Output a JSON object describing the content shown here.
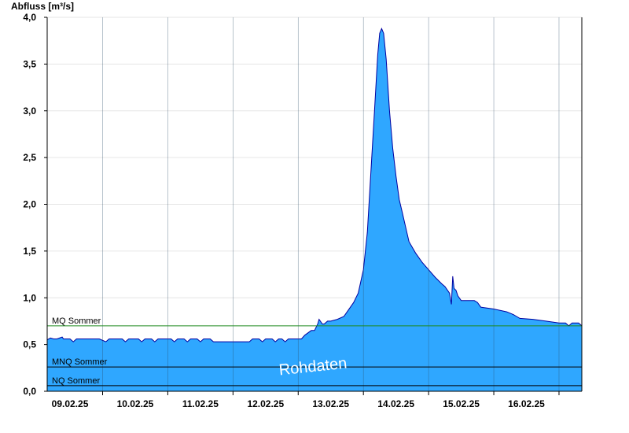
{
  "chart_data": {
    "type": "area",
    "ylabel": "Abfluss [m³/s]",
    "ylim": [
      0,
      4.0
    ],
    "yticks": [
      "0,0",
      "0,5",
      "1,0",
      "1,5",
      "2,0",
      "2,5",
      "3,0",
      "3,5",
      "4,0"
    ],
    "ytick_values": [
      0,
      0.5,
      1.0,
      1.5,
      2.0,
      2.5,
      3.0,
      3.5,
      4.0
    ],
    "xlim": [
      -0.35,
      7.85
    ],
    "xticks": [
      "09.02.25",
      "10.02.25",
      "11.02.25",
      "12.02.25",
      "13.02.25",
      "14.02.25",
      "15.02.25",
      "16.02.25"
    ],
    "grid": true,
    "watermark": "Rohdaten",
    "fill_color": "#2fa7ff",
    "line_color": "#0000a0",
    "reference_lines": [
      {
        "label": "MQ Sommer",
        "value": 0.7,
        "color": "#1e8a1e"
      },
      {
        "label": "MNQ Sommer",
        "value": 0.26,
        "color": "#000000"
      },
      {
        "label": "NQ Sommer",
        "value": 0.06,
        "color": "#000000"
      }
    ],
    "series": [
      {
        "values": [
          [
            -0.35,
            0.55
          ],
          [
            -0.3,
            0.57
          ],
          [
            -0.25,
            0.56
          ],
          [
            -0.2,
            0.56
          ],
          [
            -0.12,
            0.58
          ],
          [
            -0.1,
            0.56
          ],
          [
            0.0,
            0.56
          ],
          [
            0.05,
            0.53
          ],
          [
            0.1,
            0.56
          ],
          [
            0.3,
            0.56
          ],
          [
            0.45,
            0.56
          ],
          [
            0.55,
            0.53
          ],
          [
            0.6,
            0.56
          ],
          [
            0.8,
            0.56
          ],
          [
            0.85,
            0.53
          ],
          [
            0.9,
            0.56
          ],
          [
            1.05,
            0.56
          ],
          [
            1.1,
            0.53
          ],
          [
            1.15,
            0.56
          ],
          [
            1.25,
            0.56
          ],
          [
            1.3,
            0.53
          ],
          [
            1.35,
            0.56
          ],
          [
            1.55,
            0.56
          ],
          [
            1.6,
            0.53
          ],
          [
            1.65,
            0.56
          ],
          [
            1.75,
            0.56
          ],
          [
            1.8,
            0.53
          ],
          [
            1.85,
            0.56
          ],
          [
            1.95,
            0.56
          ],
          [
            2.0,
            0.53
          ],
          [
            2.05,
            0.56
          ],
          [
            2.15,
            0.56
          ],
          [
            2.2,
            0.53
          ],
          [
            2.4,
            0.53
          ],
          [
            2.5,
            0.53
          ],
          [
            2.75,
            0.53
          ],
          [
            2.8,
            0.56
          ],
          [
            2.9,
            0.56
          ],
          [
            2.95,
            0.53
          ],
          [
            3.0,
            0.56
          ],
          [
            3.1,
            0.56
          ],
          [
            3.15,
            0.53
          ],
          [
            3.2,
            0.56
          ],
          [
            3.25,
            0.56
          ],
          [
            3.3,
            0.53
          ],
          [
            3.35,
            0.56
          ],
          [
            3.55,
            0.56
          ],
          [
            3.6,
            0.6
          ],
          [
            3.7,
            0.65
          ],
          [
            3.75,
            0.65
          ],
          [
            3.8,
            0.72
          ],
          [
            3.82,
            0.77
          ],
          [
            3.87,
            0.72
          ],
          [
            3.9,
            0.72
          ],
          [
            3.95,
            0.75
          ],
          [
            4.0,
            0.75
          ],
          [
            4.1,
            0.77
          ],
          [
            4.2,
            0.8
          ],
          [
            4.25,
            0.85
          ],
          [
            4.35,
            0.95
          ],
          [
            4.42,
            1.05
          ],
          [
            4.5,
            1.3
          ],
          [
            4.56,
            1.7
          ],
          [
            4.62,
            2.4
          ],
          [
            4.67,
            3.0
          ],
          [
            4.72,
            3.6
          ],
          [
            4.75,
            3.83
          ],
          [
            4.78,
            3.88
          ],
          [
            4.81,
            3.83
          ],
          [
            4.85,
            3.55
          ],
          [
            4.9,
            3.0
          ],
          [
            4.95,
            2.6
          ],
          [
            5.0,
            2.3
          ],
          [
            5.05,
            2.05
          ],
          [
            5.1,
            1.9
          ],
          [
            5.15,
            1.75
          ],
          [
            5.2,
            1.6
          ],
          [
            5.3,
            1.48
          ],
          [
            5.4,
            1.38
          ],
          [
            5.5,
            1.3
          ],
          [
            5.6,
            1.22
          ],
          [
            5.7,
            1.15
          ],
          [
            5.75,
            1.12
          ],
          [
            5.82,
            1.05
          ],
          [
            5.85,
            0.93
          ],
          [
            5.87,
            1.23
          ],
          [
            5.89,
            1.1
          ],
          [
            5.92,
            1.08
          ],
          [
            5.95,
            1.02
          ],
          [
            6.0,
            0.97
          ],
          [
            6.2,
            0.97
          ],
          [
            6.25,
            0.95
          ],
          [
            6.3,
            0.9
          ],
          [
            6.5,
            0.88
          ],
          [
            6.7,
            0.85
          ],
          [
            6.8,
            0.82
          ],
          [
            6.85,
            0.8
          ],
          [
            6.9,
            0.78
          ],
          [
            7.1,
            0.77
          ],
          [
            7.3,
            0.75
          ],
          [
            7.5,
            0.73
          ],
          [
            7.6,
            0.73
          ],
          [
            7.65,
            0.7
          ],
          [
            7.7,
            0.73
          ],
          [
            7.8,
            0.73
          ],
          [
            7.85,
            0.7
          ]
        ]
      }
    ]
  }
}
